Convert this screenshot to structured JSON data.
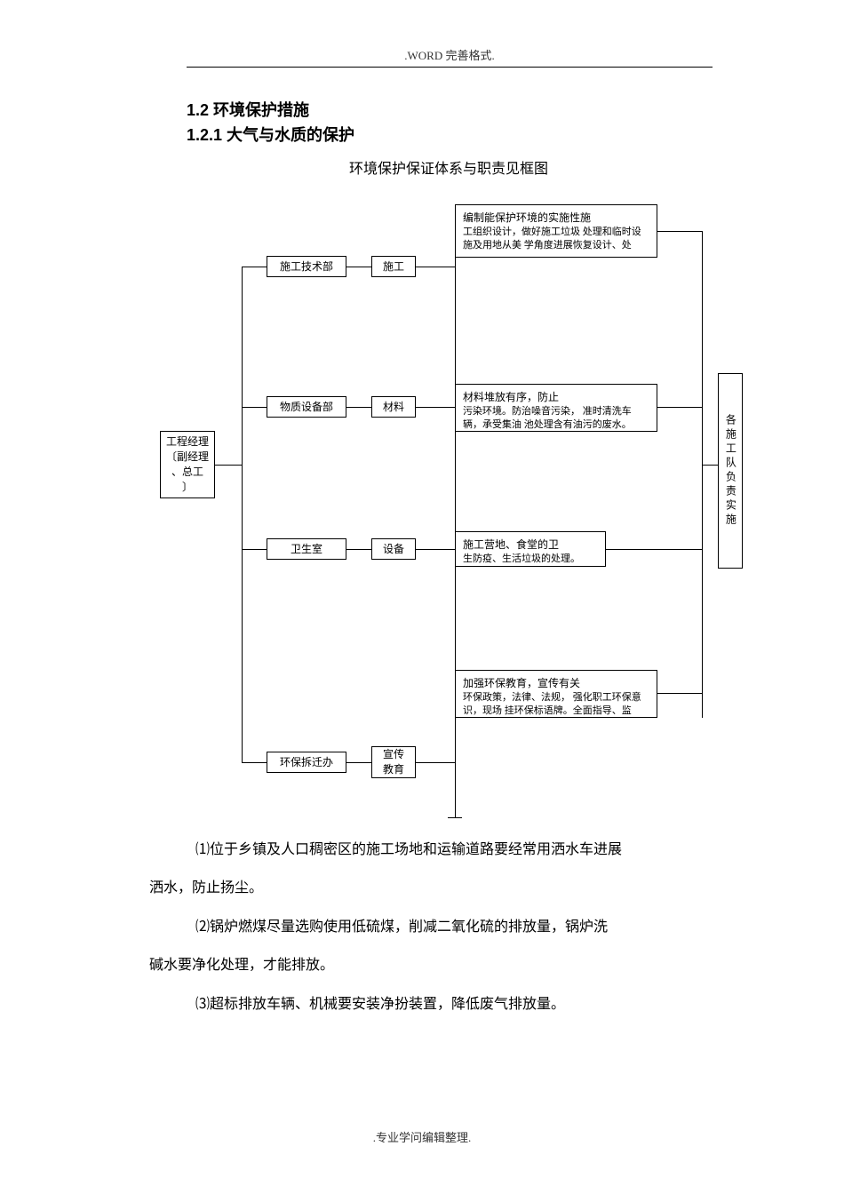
{
  "header": ".WORD 完善格式.",
  "footer": ".专业学问编辑整理.",
  "headings": {
    "h1": "1.2 环境保护措施",
    "h2": "1.2.1 大气与水质的保护",
    "subtitle": "环境保护保证体系与职责见框图"
  },
  "diagram": {
    "manager": "工程经理\n〔副经理\n、总工\n〕",
    "team_right": "各施工队负责实施",
    "rows": [
      {
        "dept": "施工技术部",
        "mid": "施工",
        "desc_title": "编制能保护环境的实施性施",
        "desc_body": "工组织设计，做好施工垃圾 处理和临时设施及用地从美 学角度进展恢复设计、处"
      },
      {
        "dept": "物质设备部",
        "mid": "材料",
        "desc_title": "材料堆放有序，防止",
        "desc_body": "污染环境。防治噪音污染， 准时清洗车辆，承受集油 池处理含有油污的废水。"
      },
      {
        "dept": "卫生室",
        "mid": "设备",
        "desc_title": "施工营地、食堂的卫",
        "desc_body": "生防疫、生活垃圾的处理。"
      },
      {
        "dept": "环保拆迁办",
        "mid": "宣传\n教育",
        "desc_title": "加强环保教育，宣传有关",
        "desc_body": "环保政策，法律、法规， 强化职工环保意识，现场 挂环保标语牌。全面指导、监"
      }
    ],
    "styling": {
      "border_color": "#000000",
      "bg_color": "#ffffff",
      "font_size": 12,
      "line_color": "#000000"
    }
  },
  "paragraphs": {
    "p1_line1": "⑴位于乡镇及人口稠密区的施工场地和运输道路要经常用洒水车进展",
    "p1_line2": "洒水，防止扬尘。",
    "p2_line1": "⑵锅炉燃煤尽量选购使用低硫煤，削减二氧化硫的排放量，锅炉洗",
    "p2_line2": "碱水要净化处理，才能排放。",
    "p3": "⑶超标排放车辆、机械要安装净扮装置，降低废气排放量。"
  }
}
